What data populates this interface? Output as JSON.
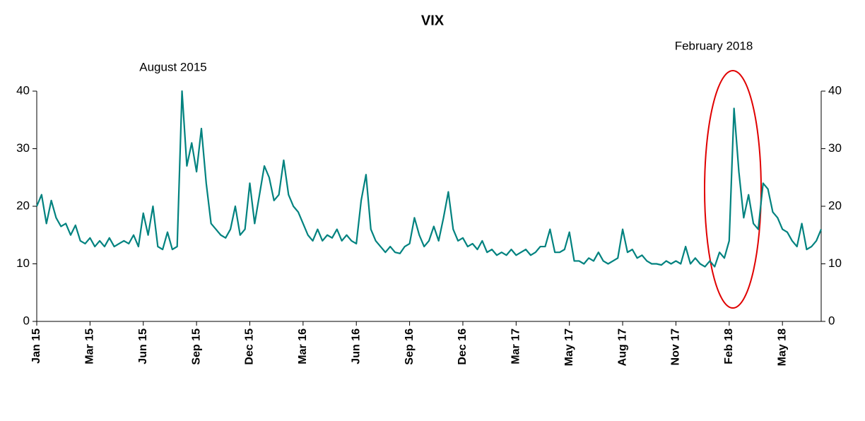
{
  "chart_data": {
    "type": "line",
    "title": "VIX",
    "annotations": [
      "August 2015",
      "February 2018"
    ],
    "categories": [
      "Jan 15",
      null,
      null,
      null,
      null,
      null,
      null,
      null,
      null,
      null,
      null,
      "Mar 15",
      null,
      null,
      null,
      null,
      null,
      null,
      null,
      null,
      null,
      null,
      "Jun 15",
      null,
      null,
      null,
      null,
      null,
      null,
      null,
      null,
      null,
      null,
      "Sep 15",
      null,
      null,
      null,
      null,
      null,
      null,
      null,
      null,
      null,
      null,
      "Dec 15",
      null,
      null,
      null,
      null,
      null,
      null,
      null,
      null,
      null,
      null,
      "Mar 16",
      null,
      null,
      null,
      null,
      null,
      null,
      null,
      null,
      null,
      null,
      "Jun 16",
      null,
      null,
      null,
      null,
      null,
      null,
      null,
      null,
      null,
      null,
      "Sep 16",
      null,
      null,
      null,
      null,
      null,
      null,
      null,
      null,
      null,
      null,
      "Dec 16",
      null,
      null,
      null,
      null,
      null,
      null,
      null,
      null,
      null,
      null,
      "Mar 17",
      null,
      null,
      null,
      null,
      null,
      null,
      null,
      null,
      null,
      null,
      "May 17",
      null,
      null,
      null,
      null,
      null,
      null,
      null,
      null,
      null,
      null,
      "Aug 17",
      null,
      null,
      null,
      null,
      null,
      null,
      null,
      null,
      null,
      null,
      "Nov 17",
      null,
      null,
      null,
      null,
      null,
      null,
      null,
      null,
      null,
      null,
      "Feb 18",
      null,
      null,
      null,
      null,
      null,
      null,
      null,
      null,
      null,
      null,
      "May 18",
      null,
      null,
      null,
      null,
      null,
      null,
      null,
      null
    ],
    "values": [
      20,
      22,
      17,
      21,
      18,
      16.5,
      17,
      15,
      16.7,
      14,
      13.5,
      14.5,
      13,
      14,
      13,
      14.5,
      13,
      13.5,
      14,
      13.5,
      15,
      13,
      18.8,
      15,
      20,
      13,
      12.5,
      15.5,
      12.5,
      13,
      40,
      27,
      31,
      26,
      33.5,
      24,
      17,
      16,
      15,
      14.5,
      16,
      20,
      15,
      16,
      24,
      17,
      22,
      27,
      25,
      21,
      22,
      28,
      22,
      20,
      19,
      17,
      15,
      14,
      16,
      14,
      15,
      14.5,
      16,
      14,
      15,
      14,
      13.5,
      21,
      25.5,
      16,
      14,
      13,
      12,
      13,
      12,
      11.8,
      13,
      13.5,
      18,
      15,
      13,
      14,
      16.5,
      14,
      18,
      22.5,
      16,
      14,
      14.5,
      13,
      13.5,
      12.5,
      14,
      12,
      12.5,
      11.5,
      12,
      11.5,
      12.5,
      11.5,
      12,
      12.5,
      11.5,
      12,
      13,
      13,
      16,
      12,
      12,
      12.5,
      15.5,
      10.5,
      10.5,
      10,
      11,
      10.5,
      12,
      10.5,
      10,
      10.5,
      11,
      16,
      12,
      12.5,
      11,
      11.5,
      10.5,
      10,
      10,
      9.8,
      10.5,
      10,
      10.5,
      10,
      13,
      10,
      11,
      10,
      9.5,
      10.5,
      9.5,
      12,
      11,
      14,
      37,
      26,
      18,
      22,
      17,
      16,
      24,
      23,
      19,
      18,
      16,
      15.5,
      14,
      13,
      17,
      12.5,
      13,
      14,
      16
    ],
    "color": "#00827f",
    "ylim": [
      0,
      40
    ],
    "yticks": [
      0,
      10,
      20,
      30,
      40
    ],
    "y2lim": [
      0,
      40
    ],
    "y2ticks": [
      0,
      10,
      20,
      30,
      40
    ],
    "grid": false
  }
}
